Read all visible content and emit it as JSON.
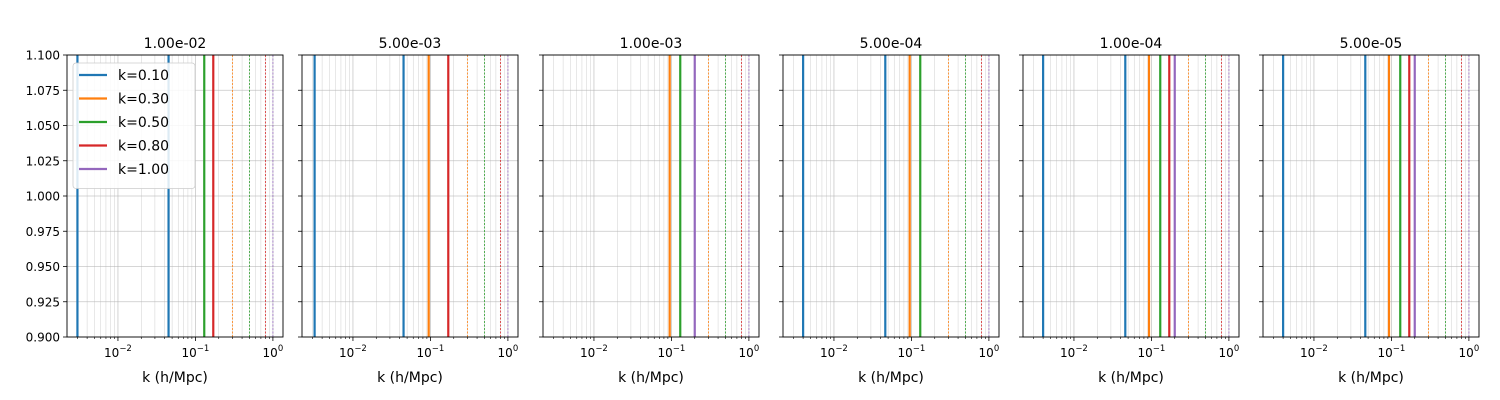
{
  "chart_data": [
    {
      "type": "line",
      "title": "1.00e-02",
      "xlabel": "k (h/Mpc)",
      "ylabel": "",
      "xscale": "log",
      "xlim": [
        0.0022,
        1.35
      ],
      "ylim": [
        0.9,
        1.1
      ],
      "yticks": [
        "0.900",
        "0.925",
        "0.950",
        "0.975",
        "1.000",
        "1.025",
        "1.050",
        "1.075",
        "1.100"
      ],
      "xticks": [
        {
          "base": "10",
          "exp": "−2",
          "value": 0.01
        },
        {
          "base": "10",
          "exp": "−1",
          "value": 0.1
        },
        {
          "base": "10",
          "exp": "0",
          "value": 1
        }
      ],
      "grid": true,
      "legend_placement": "upper-left",
      "legend": [
        {
          "label": "k=0.10",
          "color": "#1f77b4"
        },
        {
          "label": "k=0.30",
          "color": "#ff7f0e"
        },
        {
          "label": "k=0.50",
          "color": "#2ca02c"
        },
        {
          "label": "k=0.80",
          "color": "#d62728"
        },
        {
          "label": "k=1.00",
          "color": "#9467bd"
        }
      ],
      "vertical_lines": [
        {
          "x": 0.003,
          "color": "#1f77b4",
          "style": "solid"
        },
        {
          "x": 0.045,
          "color": "#1f77b4",
          "style": "solid"
        },
        {
          "x": 0.13,
          "color": "#2ca02c",
          "style": "solid"
        },
        {
          "x": 0.17,
          "color": "#d62728",
          "style": "solid"
        },
        {
          "x": 0.3,
          "color": "#ff7f0e",
          "style": "dashed"
        },
        {
          "x": 0.5,
          "color": "#2ca02c",
          "style": "dashed"
        },
        {
          "x": 0.8,
          "color": "#d62728",
          "style": "dashed"
        },
        {
          "x": 1.0,
          "color": "#9467bd",
          "style": "dashed"
        }
      ]
    },
    {
      "type": "line",
      "title": "5.00e-03",
      "xlabel": "k (h/Mpc)",
      "ylabel": "",
      "xscale": "log",
      "xlim": [
        0.0022,
        1.35
      ],
      "ylim": [
        0.9,
        1.1
      ],
      "yticks": [],
      "xticks": [
        {
          "base": "10",
          "exp": "−2",
          "value": 0.01
        },
        {
          "base": "10",
          "exp": "−1",
          "value": 0.1
        },
        {
          "base": "10",
          "exp": "0",
          "value": 1
        }
      ],
      "grid": true,
      "vertical_lines": [
        {
          "x": 0.0032,
          "color": "#1f77b4",
          "style": "solid"
        },
        {
          "x": 0.045,
          "color": "#1f77b4",
          "style": "solid"
        },
        {
          "x": 0.095,
          "color": "#ff7f0e",
          "style": "solid"
        },
        {
          "x": 0.17,
          "color": "#d62728",
          "style": "solid"
        },
        {
          "x": 0.3,
          "color": "#ff7f0e",
          "style": "dashed"
        },
        {
          "x": 0.5,
          "color": "#2ca02c",
          "style": "dashed"
        },
        {
          "x": 0.8,
          "color": "#d62728",
          "style": "dashed"
        },
        {
          "x": 1.0,
          "color": "#9467bd",
          "style": "dashed"
        }
      ]
    },
    {
      "type": "line",
      "title": "1.00e-03",
      "xlabel": "k (h/Mpc)",
      "ylabel": "",
      "xscale": "log",
      "xlim": [
        0.0022,
        1.35
      ],
      "ylim": [
        0.9,
        1.1
      ],
      "yticks": [],
      "xticks": [
        {
          "base": "10",
          "exp": "−2",
          "value": 0.01
        },
        {
          "base": "10",
          "exp": "−1",
          "value": 0.1
        },
        {
          "base": "10",
          "exp": "0",
          "value": 1
        }
      ],
      "grid": true,
      "vertical_lines": [
        {
          "x": 0.095,
          "color": "#ff7f0e",
          "style": "solid"
        },
        {
          "x": 0.13,
          "color": "#2ca02c",
          "style": "solid"
        },
        {
          "x": 0.2,
          "color": "#9467bd",
          "style": "solid"
        },
        {
          "x": 0.3,
          "color": "#ff7f0e",
          "style": "dashed"
        },
        {
          "x": 0.5,
          "color": "#2ca02c",
          "style": "dashed"
        },
        {
          "x": 0.8,
          "color": "#d62728",
          "style": "dashed"
        },
        {
          "x": 1.0,
          "color": "#9467bd",
          "style": "dashed"
        }
      ]
    },
    {
      "type": "line",
      "title": "5.00e-04",
      "xlabel": "k (h/Mpc)",
      "ylabel": "",
      "xscale": "log",
      "xlim": [
        0.0022,
        1.35
      ],
      "ylim": [
        0.9,
        1.1
      ],
      "yticks": [],
      "xticks": [
        {
          "base": "10",
          "exp": "−2",
          "value": 0.01
        },
        {
          "base": "10",
          "exp": "−1",
          "value": 0.1
        },
        {
          "base": "10",
          "exp": "0",
          "value": 1
        }
      ],
      "grid": true,
      "vertical_lines": [
        {
          "x": 0.004,
          "color": "#1f77b4",
          "style": "solid"
        },
        {
          "x": 0.046,
          "color": "#1f77b4",
          "style": "solid"
        },
        {
          "x": 0.095,
          "color": "#ff7f0e",
          "style": "solid"
        },
        {
          "x": 0.13,
          "color": "#2ca02c",
          "style": "solid"
        },
        {
          "x": 0.3,
          "color": "#ff7f0e",
          "style": "dashed"
        },
        {
          "x": 0.5,
          "color": "#2ca02c",
          "style": "dashed"
        },
        {
          "x": 0.8,
          "color": "#d62728",
          "style": "dashed"
        },
        {
          "x": 1.0,
          "color": "#9467bd",
          "style": "dashed"
        }
      ]
    },
    {
      "type": "line",
      "title": "1.00e-04",
      "xlabel": "k (h/Mpc)",
      "ylabel": "",
      "xscale": "log",
      "xlim": [
        0.0022,
        1.35
      ],
      "ylim": [
        0.9,
        1.1
      ],
      "yticks": [],
      "xticks": [
        {
          "base": "10",
          "exp": "−2",
          "value": 0.01
        },
        {
          "base": "10",
          "exp": "−1",
          "value": 0.1
        },
        {
          "base": "10",
          "exp": "0",
          "value": 1
        }
      ],
      "grid": true,
      "vertical_lines": [
        {
          "x": 0.004,
          "color": "#1f77b4",
          "style": "solid"
        },
        {
          "x": 0.046,
          "color": "#1f77b4",
          "style": "solid"
        },
        {
          "x": 0.093,
          "color": "#ff7f0e",
          "style": "solid"
        },
        {
          "x": 0.13,
          "color": "#2ca02c",
          "style": "solid"
        },
        {
          "x": 0.17,
          "color": "#d62728",
          "style": "solid"
        },
        {
          "x": 0.2,
          "color": "#9467bd",
          "style": "solid"
        },
        {
          "x": 0.3,
          "color": "#ff7f0e",
          "style": "dashed"
        },
        {
          "x": 0.5,
          "color": "#2ca02c",
          "style": "dashed"
        },
        {
          "x": 0.8,
          "color": "#d62728",
          "style": "dashed"
        },
        {
          "x": 1.0,
          "color": "#9467bd",
          "style": "dashed"
        }
      ]
    },
    {
      "type": "line",
      "title": "5.00e-05",
      "xlabel": "k (h/Mpc)",
      "ylabel": "",
      "xscale": "log",
      "xlim": [
        0.0022,
        1.35
      ],
      "ylim": [
        0.9,
        1.1
      ],
      "yticks": [],
      "xticks": [
        {
          "base": "10",
          "exp": "−2",
          "value": 0.01
        },
        {
          "base": "10",
          "exp": "−1",
          "value": 0.1
        },
        {
          "base": "10",
          "exp": "0",
          "value": 1
        }
      ],
      "grid": true,
      "vertical_lines": [
        {
          "x": 0.004,
          "color": "#1f77b4",
          "style": "solid"
        },
        {
          "x": 0.046,
          "color": "#1f77b4",
          "style": "solid"
        },
        {
          "x": 0.093,
          "color": "#ff7f0e",
          "style": "solid"
        },
        {
          "x": 0.13,
          "color": "#2ca02c",
          "style": "solid"
        },
        {
          "x": 0.17,
          "color": "#d62728",
          "style": "solid"
        },
        {
          "x": 0.2,
          "color": "#9467bd",
          "style": "solid"
        },
        {
          "x": 0.3,
          "color": "#ff7f0e",
          "style": "dashed"
        },
        {
          "x": 0.5,
          "color": "#2ca02c",
          "style": "dashed"
        },
        {
          "x": 0.8,
          "color": "#d62728",
          "style": "dashed"
        },
        {
          "x": 1.0,
          "color": "#9467bd",
          "style": "dashed"
        }
      ]
    }
  ]
}
